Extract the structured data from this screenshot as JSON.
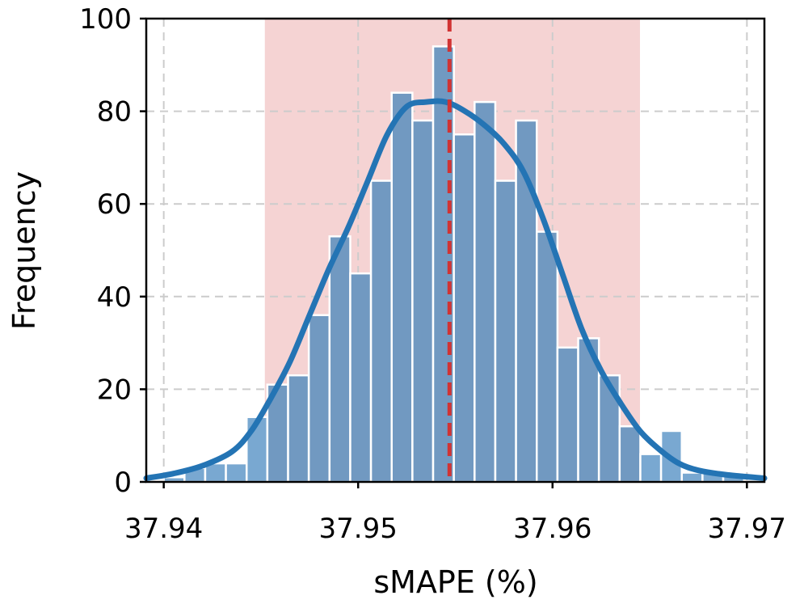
{
  "chart_data": {
    "type": "bar",
    "title": "",
    "xlabel": "sMAPE (%)",
    "ylabel": "Frequency",
    "xlim": [
      37.9391,
      37.9709
    ],
    "ylim": [
      0,
      100
    ],
    "xticks": [
      {
        "value": 37.94,
        "label": "37.94"
      },
      {
        "value": 37.95,
        "label": "37.95"
      },
      {
        "value": 37.96,
        "label": "37.96"
      },
      {
        "value": 37.97,
        "label": "37.97"
      }
    ],
    "yticks": [
      {
        "value": 0,
        "label": "0"
      },
      {
        "value": 20,
        "label": "20"
      },
      {
        "value": 40,
        "label": "40"
      },
      {
        "value": 60,
        "label": "60"
      },
      {
        "value": 80,
        "label": "80"
      },
      {
        "value": 100,
        "label": "100"
      }
    ],
    "grid": true,
    "bins": {
      "start": 37.94,
      "width": 0.001066,
      "counts": [
        1,
        3,
        4,
        4,
        14,
        21,
        23,
        36,
        53,
        45,
        65,
        84,
        78,
        94,
        75,
        82,
        65,
        78,
        54,
        29,
        31,
        23,
        12,
        6,
        11,
        2,
        2,
        2
      ]
    },
    "confidence_interval": {
      "low": 37.9452,
      "high": 37.9645
    },
    "mean": 37.9547,
    "kde": {
      "x": [
        37.9391,
        37.9405,
        37.942,
        37.9435,
        37.9445,
        37.9455,
        37.9465,
        37.9475,
        37.9485,
        37.9495,
        37.9505,
        37.9515,
        37.9525,
        37.9535,
        37.9545,
        37.9555,
        37.9565,
        37.9575,
        37.9585,
        37.9595,
        37.9605,
        37.9615,
        37.9625,
        37.9635,
        37.9645,
        37.9655,
        37.9665,
        37.9675,
        37.969,
        37.9709
      ],
      "y": [
        0.8,
        1.8,
        3.5,
        6.5,
        11,
        18,
        26,
        36,
        46,
        55,
        65,
        75,
        81,
        82,
        82,
        80,
        77,
        73,
        67,
        57,
        45,
        33,
        24,
        17,
        11,
        7,
        4,
        2.5,
        1.5,
        0.8
      ]
    },
    "colors": {
      "bar_fill": "#7199c1",
      "bar_fill_outside": "#79a8d1",
      "bar_edge": "#ffffff",
      "ci_band": "#f5d3d3",
      "kde_line": "#2474b4",
      "mean_line": "#d13333"
    }
  }
}
